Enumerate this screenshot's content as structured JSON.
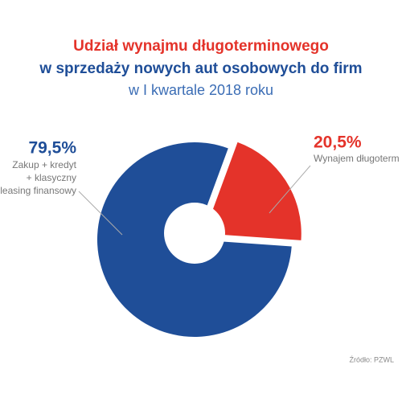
{
  "chart_data": {
    "type": "pie",
    "title": [
      "Udział wynajmu długoterminowego",
      "w sprzedaży nowych aut osobowych do firm"
    ],
    "subtitle": "w I kwartale 2018 roku",
    "categories": [
      [
        "Zakup + kredyt",
        "+ klasyczny",
        "leasing finansowy"
      ],
      [
        "Wynajem długoterm"
      ]
    ],
    "values": [
      79.5,
      20.5
    ],
    "value_labels": [
      "79,5%",
      "20,5%"
    ],
    "colors": [
      "#1f4e98",
      "#e4332a"
    ],
    "exploded": [
      false,
      true
    ],
    "source": "Źródło: PZWL"
  }
}
